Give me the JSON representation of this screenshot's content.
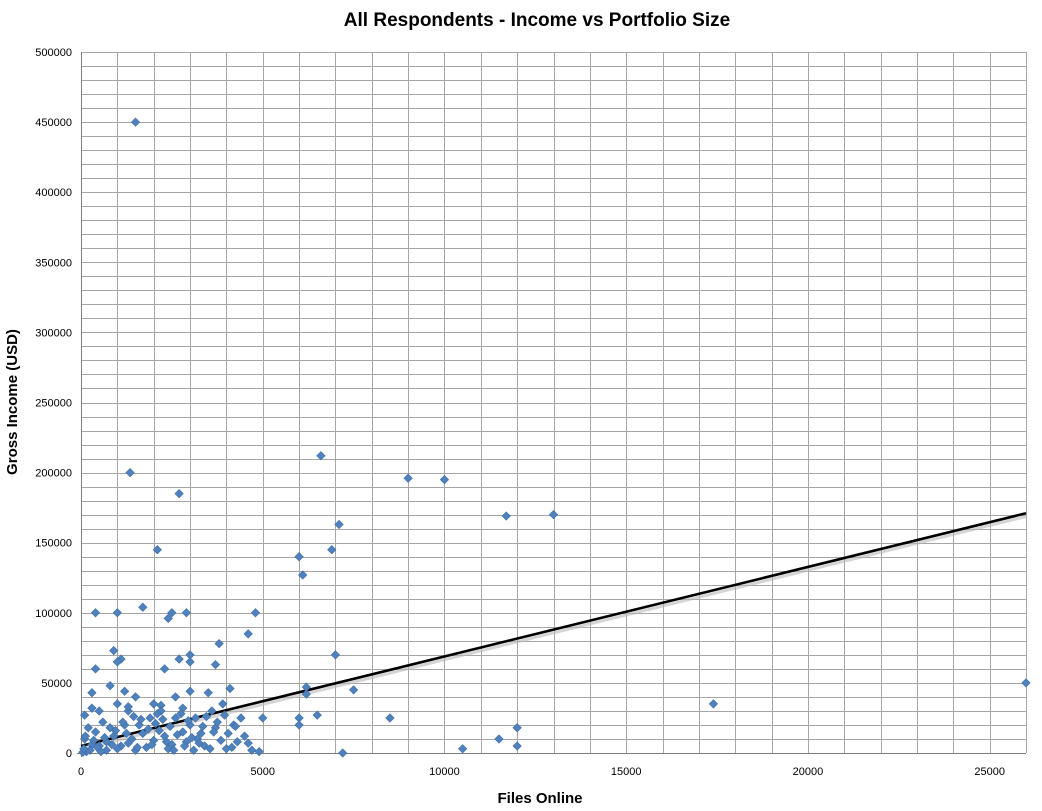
{
  "chart_data": {
    "type": "scatter",
    "title": "All Respondents - Income vs Portfolio Size",
    "xlabel": "Files Online",
    "ylabel": "Gross Income (USD)",
    "xlim": [
      0,
      26000
    ],
    "ylim": [
      0,
      500000
    ],
    "x_ticks": [
      0,
      5000,
      10000,
      15000,
      20000,
      25000
    ],
    "y_ticks": [
      0,
      50000,
      100000,
      150000,
      200000,
      250000,
      300000,
      350000,
      400000,
      450000,
      500000
    ],
    "x_minor_step": 1000,
    "y_minor_step": 10000,
    "grid": true,
    "legend": "none",
    "colors": {
      "points": "#4f81bd",
      "trendline": "#000000",
      "grid": "#a6a6a6"
    },
    "trendline": {
      "type": "linear",
      "x": [
        0,
        26000
      ],
      "y": [
        5000,
        171000
      ]
    },
    "points": [
      [
        1500,
        450000
      ],
      [
        1350,
        200000
      ],
      [
        2700,
        185000
      ],
      [
        2100,
        145000
      ],
      [
        1700,
        104000
      ],
      [
        400,
        100000
      ],
      [
        1000,
        100000
      ],
      [
        2500,
        100000
      ],
      [
        2400,
        96000
      ],
      [
        2900,
        100000
      ],
      [
        4800,
        100000
      ],
      [
        3800,
        78000
      ],
      [
        4600,
        85000
      ],
      [
        900,
        73000
      ],
      [
        1100,
        67000
      ],
      [
        1000,
        65000
      ],
      [
        3000,
        70000
      ],
      [
        2700,
        67000
      ],
      [
        3000,
        65000
      ],
      [
        2300,
        60000
      ],
      [
        400,
        60000
      ],
      [
        3700,
        63000
      ],
      [
        800,
        48000
      ],
      [
        1200,
        44000
      ],
      [
        300,
        43000
      ],
      [
        2600,
        40000
      ],
      [
        1500,
        40000
      ],
      [
        3000,
        44000
      ],
      [
        3500,
        43000
      ],
      [
        4100,
        46000
      ],
      [
        2000,
        35000
      ],
      [
        1000,
        35000
      ],
      [
        1300,
        30000
      ],
      [
        1300,
        33000
      ],
      [
        2200,
        34000
      ],
      [
        300,
        32000
      ],
      [
        500,
        30000
      ],
      [
        100,
        27000
      ],
      [
        2200,
        30000
      ],
      [
        2800,
        32000
      ],
      [
        3600,
        30000
      ],
      [
        3900,
        35000
      ],
      [
        4200,
        20000
      ],
      [
        3000,
        20000
      ],
      [
        2600,
        25000
      ],
      [
        2100,
        28000
      ],
      [
        1900,
        25000
      ],
      [
        1600,
        20000
      ],
      [
        1200,
        20000
      ],
      [
        800,
        18000
      ],
      [
        600,
        22000
      ],
      [
        400,
        15000
      ],
      [
        200,
        18000
      ],
      [
        100,
        10000
      ],
      [
        300,
        6000
      ],
      [
        700,
        8000
      ],
      [
        900,
        12000
      ],
      [
        1100,
        5000
      ],
      [
        1400,
        10000
      ],
      [
        1700,
        14000
      ],
      [
        2000,
        9000
      ],
      [
        2300,
        12000
      ],
      [
        2500,
        6000
      ],
      [
        2800,
        15000
      ],
      [
        3200,
        10000
      ],
      [
        3400,
        5000
      ],
      [
        3700,
        18000
      ],
      [
        4000,
        3000
      ],
      [
        4300,
        8000
      ],
      [
        4500,
        12000
      ],
      [
        4700,
        2000
      ],
      [
        3300,
        14000
      ],
      [
        3100,
        2000
      ],
      [
        2900,
        8000
      ],
      [
        2400,
        3000
      ],
      [
        1800,
        4000
      ],
      [
        1500,
        2000
      ],
      [
        1300,
        7000
      ],
      [
        1000,
        3000
      ],
      [
        700,
        2000
      ],
      [
        500,
        5000
      ],
      [
        250,
        2000
      ],
      [
        150,
        1000
      ],
      [
        50,
        500
      ],
      [
        80,
        3000
      ],
      [
        120,
        12000
      ],
      [
        350,
        9000
      ],
      [
        450,
        4000
      ],
      [
        550,
        1000
      ],
      [
        650,
        11000
      ],
      [
        850,
        6000
      ],
      [
        950,
        16000
      ],
      [
        1150,
        22000
      ],
      [
        1250,
        14000
      ],
      [
        1450,
        26000
      ],
      [
        1550,
        4000
      ],
      [
        1650,
        24000
      ],
      [
        1850,
        17000
      ],
      [
        1950,
        6000
      ],
      [
        2050,
        21000
      ],
      [
        2150,
        16000
      ],
      [
        2250,
        24000
      ],
      [
        2350,
        8000
      ],
      [
        2450,
        19000
      ],
      [
        2550,
        2000
      ],
      [
        2650,
        13000
      ],
      [
        2750,
        28000
      ],
      [
        2850,
        5000
      ],
      [
        2950,
        23000
      ],
      [
        3050,
        11000
      ],
      [
        3150,
        25000
      ],
      [
        3250,
        7000
      ],
      [
        3350,
        19000
      ],
      [
        3450,
        26000
      ],
      [
        3550,
        3000
      ],
      [
        3650,
        15000
      ],
      [
        3750,
        22000
      ],
      [
        3850,
        9000
      ],
      [
        3950,
        27000
      ],
      [
        4050,
        14000
      ],
      [
        4150,
        4000
      ],
      [
        4250,
        19000
      ],
      [
        4400,
        25000
      ],
      [
        4600,
        7000
      ],
      [
        4900,
        1000
      ],
      [
        5000,
        25000
      ],
      [
        6000,
        140000
      ],
      [
        6100,
        127000
      ],
      [
        6000,
        25000
      ],
      [
        6000,
        20000
      ],
      [
        6200,
        47000
      ],
      [
        6200,
        42000
      ],
      [
        6500,
        27000
      ],
      [
        6600,
        212000
      ],
      [
        6900,
        145000
      ],
      [
        7000,
        70000
      ],
      [
        7100,
        163000
      ],
      [
        7200,
        0
      ],
      [
        7500,
        45000
      ],
      [
        8500,
        25000
      ],
      [
        9000,
        196000
      ],
      [
        10000,
        195000
      ],
      [
        10500,
        3000
      ],
      [
        11500,
        10000
      ],
      [
        11700,
        169000
      ],
      [
        12000,
        18000
      ],
      [
        12000,
        5000
      ],
      [
        13000,
        170000
      ],
      [
        17400,
        35000
      ],
      [
        26000,
        50000
      ]
    ]
  }
}
